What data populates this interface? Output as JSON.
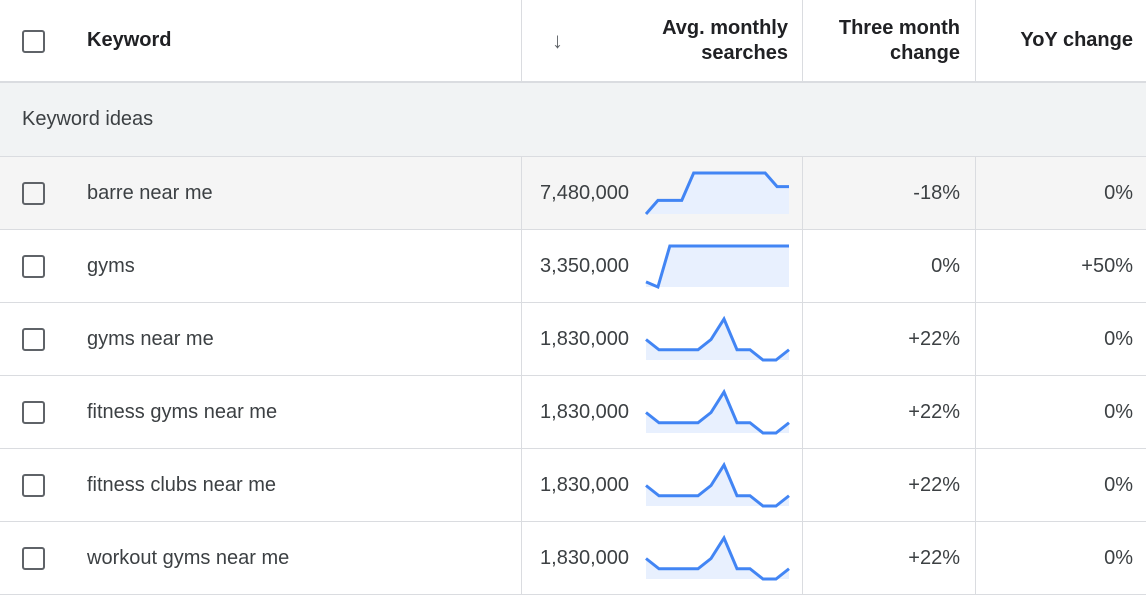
{
  "header": {
    "keyword": "Keyword",
    "avg_line1": "Avg. monthly",
    "avg_line2": "searches",
    "three_line1": "Three month",
    "three_line2": "change",
    "yoy": "YoY change",
    "sort_icon": "arrow-down-icon"
  },
  "group": {
    "label": "Keyword ideas"
  },
  "rows": [
    {
      "keyword": "barre near me",
      "avg": "7,480,000",
      "three": "-18%",
      "yoy": "0%",
      "trend": [
        3,
        4,
        4,
        4,
        6,
        6,
        6,
        6,
        6,
        6,
        6,
        5,
        5
      ]
    },
    {
      "keyword": "gyms",
      "avg": "3,350,000",
      "three": "0%",
      "yoy": "+50%",
      "trend": [
        2,
        1,
        9,
        9,
        9,
        9,
        9,
        9,
        9,
        9,
        9,
        9,
        9
      ]
    },
    {
      "keyword": "gyms near me",
      "avg": "1,830,000",
      "three": "+22%",
      "yoy": "0%",
      "trend": [
        4,
        3,
        3,
        3,
        3,
        4,
        6,
        3,
        3,
        2,
        2,
        3
      ]
    },
    {
      "keyword": "fitness gyms near me",
      "avg": "1,830,000",
      "three": "+22%",
      "yoy": "0%",
      "trend": [
        4,
        3,
        3,
        3,
        3,
        4,
        6,
        3,
        3,
        2,
        2,
        3
      ]
    },
    {
      "keyword": "fitness clubs near me",
      "avg": "1,830,000",
      "three": "+22%",
      "yoy": "0%",
      "trend": [
        4,
        3,
        3,
        3,
        3,
        4,
        6,
        3,
        3,
        2,
        2,
        3
      ]
    },
    {
      "keyword": "workout gyms near me",
      "avg": "1,830,000",
      "three": "+22%",
      "yoy": "0%",
      "trend": [
        4,
        3,
        3,
        3,
        3,
        4,
        6,
        3,
        3,
        2,
        2,
        3
      ]
    }
  ],
  "colors": {
    "spark_line": "#4285f4",
    "spark_fill": "#e8f0fe",
    "group_bg": "#f1f3f4"
  }
}
